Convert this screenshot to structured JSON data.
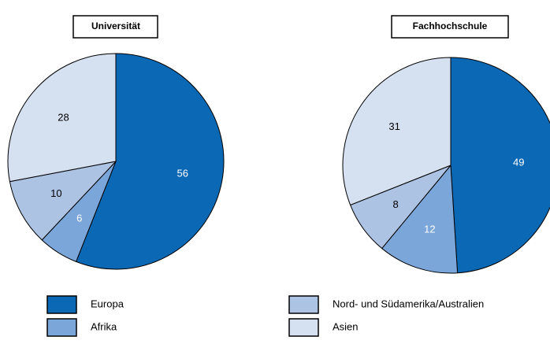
{
  "chart_data": [
    {
      "type": "pie",
      "title": "Universität",
      "categories": [
        "Europa",
        "Afrika",
        "Nord- und Südamerika/Australien",
        "Asien"
      ],
      "values": [
        56,
        6,
        10,
        28
      ],
      "colors": [
        "#0a68b4",
        "#7aa6da",
        "#adc3e4",
        "#d5e0f1"
      ],
      "label_colors": [
        "#ffffff",
        "#ffffff",
        "#000000",
        "#000000"
      ]
    },
    {
      "type": "pie",
      "title": "Fachhochschule",
      "categories": [
        "Europa",
        "Afrika",
        "Nord- und Südamerika/Australien",
        "Asien"
      ],
      "values": [
        49,
        12,
        8,
        31
      ],
      "colors": [
        "#0a68b4",
        "#7aa6da",
        "#adc3e4",
        "#d5e0f1"
      ],
      "label_colors": [
        "#ffffff",
        "#ffffff",
        "#000000",
        "#000000"
      ]
    }
  ]
}
